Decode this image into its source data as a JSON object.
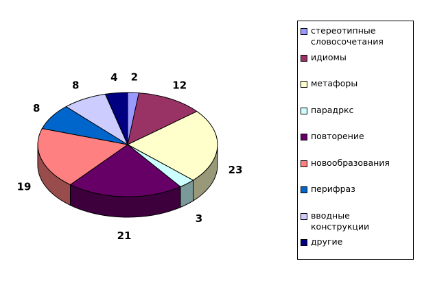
{
  "chart_data": {
    "type": "pie",
    "style": "3d",
    "start": "top, clockwise",
    "legend_position": "right",
    "slices": [
      {
        "label": "стереотипные словосочетания",
        "value": 2,
        "color": "#9999ff"
      },
      {
        "label": "идиомы",
        "value": 12,
        "color": "#993366"
      },
      {
        "label": "метафоры",
        "value": 23,
        "color": "#ffffcc"
      },
      {
        "label": "парадркс",
        "value": 3,
        "color": "#ccffff"
      },
      {
        "label": "повторение",
        "value": 21,
        "color": "#660066"
      },
      {
        "label": "новообразования",
        "value": 19,
        "color": "#ff8080"
      },
      {
        "label": "перифраз",
        "value": 8,
        "color": "#0066cc"
      },
      {
        "label": "вводные конструкции",
        "value": 8,
        "color": "#ccccff"
      },
      {
        "label": "другие",
        "value": 4,
        "color": "#000080"
      }
    ]
  }
}
